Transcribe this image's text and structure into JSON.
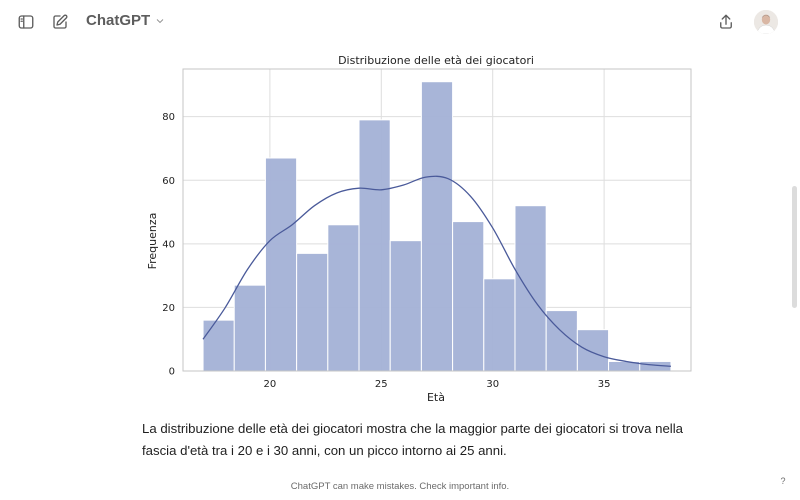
{
  "header": {
    "model_name": "ChatGPT",
    "icons": {
      "sidebar": "sidebar-toggle-icon",
      "new_chat": "edit-icon",
      "model_chevron": "chevron-down-icon",
      "share": "share-icon"
    }
  },
  "chart_data": {
    "type": "bar",
    "title": "Distribuzione delle età dei giocatori",
    "xlabel": "Età",
    "ylabel": "Frequenza",
    "xlim": [
      16.1,
      38.9
    ],
    "ylim": [
      0,
      95
    ],
    "xticks": [
      20,
      25,
      30,
      35
    ],
    "yticks": [
      0,
      20,
      40,
      60,
      80
    ],
    "grid": true,
    "bin_edges": [
      17,
      18.4,
      19.8,
      21.2,
      22.6,
      24,
      25.4,
      26.8,
      28.2,
      29.6,
      31,
      32.4,
      33.8,
      35.2,
      36.6,
      38
    ],
    "values": [
      16,
      27,
      67,
      37,
      46,
      79,
      41,
      91,
      47,
      29,
      52,
      19,
      13,
      3,
      3
    ],
    "bar_color": "#a3b1d6",
    "kde": {
      "color": "#4a5a9a",
      "x": [
        17,
        18,
        19,
        20,
        21,
        22,
        23,
        24,
        25,
        26,
        27,
        28,
        29,
        30,
        31,
        32,
        33,
        34,
        35,
        36,
        37,
        38
      ],
      "y": [
        10,
        20,
        32,
        41,
        46,
        52,
        56,
        57.5,
        57,
        58.5,
        61,
        60.5,
        55,
        45,
        32,
        21,
        13,
        7.5,
        4.5,
        3,
        2,
        1.5
      ]
    }
  },
  "message": {
    "text": "La distribuzione delle età dei giocatori mostra che la maggior parte dei giocatori si trova nella fascia d'età tra i 20 e i 30 anni, con un picco intorno ai 25 anni."
  },
  "footer": {
    "disclaimer": "ChatGPT can make mistakes. Check important info.",
    "help": "?"
  }
}
